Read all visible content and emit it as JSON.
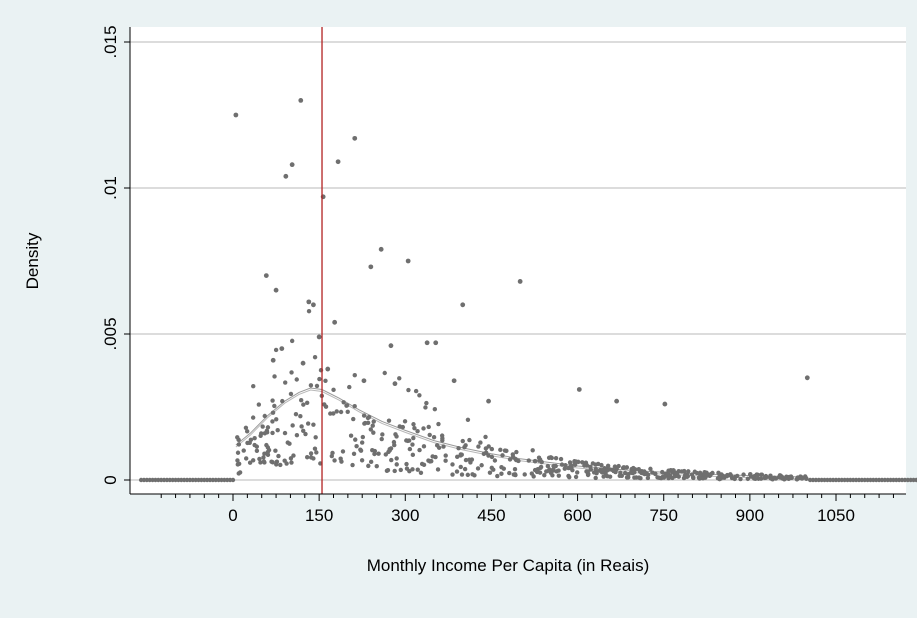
{
  "chart_data": {
    "type": "scatter",
    "title": "",
    "xlabel": "Monthly Income Per Capita (in Reais)",
    "ylabel": "Density",
    "xlim": [
      -170,
      1250
    ],
    "ylim": [
      0,
      0.0155
    ],
    "x_ticks": [
      0,
      150,
      300,
      450,
      600,
      750,
      900,
      1050
    ],
    "x_tick_labels": [
      "0",
      "150",
      "300",
      "450",
      "600",
      "750",
      "900",
      "1050"
    ],
    "y_ticks": [
      0,
      0.005,
      0.01,
      0.015
    ],
    "y_tick_labels": [
      "0",
      ".005",
      ".01",
      ".015"
    ],
    "grid": true,
    "vertical_line": {
      "x": 155,
      "color": "#b22222"
    },
    "colors": {
      "plot_bg": "#ffffff",
      "outer_bg": "#eaf2f3",
      "points": "#6f6f6f",
      "fitted_curve": "#9a9a9a",
      "gridlines": "#b9b9b9",
      "vertical_line": "#b22222"
    },
    "series": [
      {
        "type": "scatter",
        "prominent_points": [
          {
            "x": 5,
            "y": 0.0125
          },
          {
            "x": 118,
            "y": 0.013
          },
          {
            "x": 212,
            "y": 0.0117
          },
          {
            "x": 183,
            "y": 0.0109
          },
          {
            "x": 103,
            "y": 0.0108
          },
          {
            "x": 92,
            "y": 0.0104
          },
          {
            "x": 157,
            "y": 0.0097
          },
          {
            "x": 258,
            "y": 0.0079
          },
          {
            "x": 305,
            "y": 0.0075
          },
          {
            "x": 240,
            "y": 0.0073
          },
          {
            "x": 58,
            "y": 0.007
          },
          {
            "x": 500,
            "y": 0.0068
          },
          {
            "x": 75,
            "y": 0.0065
          },
          {
            "x": 132,
            "y": 0.0061
          },
          {
            "x": 140,
            "y": 0.006
          },
          {
            "x": 400,
            "y": 0.006
          },
          {
            "x": 177,
            "y": 0.0054
          },
          {
            "x": 150,
            "y": 0.0049
          },
          {
            "x": 338,
            "y": 0.0047
          },
          {
            "x": 353,
            "y": 0.0047
          },
          {
            "x": 275,
            "y": 0.0046
          },
          {
            "x": 85,
            "y": 0.0045
          },
          {
            "x": 70,
            "y": 0.0041
          },
          {
            "x": 122,
            "y": 0.004
          },
          {
            "x": 165,
            "y": 0.0038
          },
          {
            "x": 385,
            "y": 0.0034
          },
          {
            "x": 228,
            "y": 0.0034
          },
          {
            "x": 1000,
            "y": 0.0035
          },
          {
            "x": 603,
            "y": 0.0031
          },
          {
            "x": 668,
            "y": 0.0027
          },
          {
            "x": 752,
            "y": 0.0026
          },
          {
            "x": 445,
            "y": 0.0027
          },
          {
            "x": 282,
            "y": 0.0033
          }
        ],
        "noisy_band": {
          "x_from": 5,
          "x_to": 1000,
          "n": 560
        },
        "flat_zero": {
          "x_from": -160,
          "x_to": 1245,
          "step": 5,
          "y": 0
        }
      },
      {
        "type": "line",
        "fitted_curve": [
          {
            "x": 5,
            "y": 0.0012
          },
          {
            "x": 30,
            "y": 0.0016
          },
          {
            "x": 60,
            "y": 0.0022
          },
          {
            "x": 90,
            "y": 0.0027
          },
          {
            "x": 115,
            "y": 0.003
          },
          {
            "x": 135,
            "y": 0.00315
          },
          {
            "x": 155,
            "y": 0.0031
          },
          {
            "x": 185,
            "y": 0.0028
          },
          {
            "x": 220,
            "y": 0.0024
          },
          {
            "x": 260,
            "y": 0.002
          },
          {
            "x": 300,
            "y": 0.0017
          },
          {
            "x": 350,
            "y": 0.00135
          },
          {
            "x": 400,
            "y": 0.0011
          },
          {
            "x": 450,
            "y": 0.0009
          },
          {
            "x": 500,
            "y": 0.00073
          },
          {
            "x": 600,
            "y": 0.00048
          },
          {
            "x": 700,
            "y": 0.00032
          },
          {
            "x": 800,
            "y": 0.00022
          },
          {
            "x": 900,
            "y": 0.00015
          },
          {
            "x": 1000,
            "y": 0.0001
          }
        ]
      }
    ]
  }
}
